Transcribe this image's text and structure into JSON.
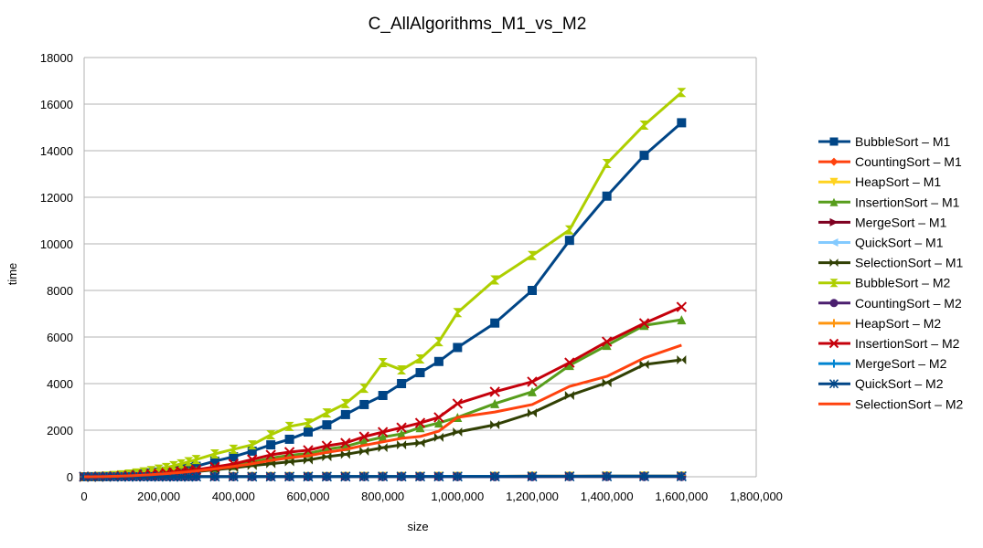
{
  "chart_data": {
    "type": "line",
    "title": "C_AllAlgorithms_M1_vs_M2",
    "xlabel": "size",
    "ylabel": "time",
    "xlim": [
      0,
      1800000
    ],
    "ylim": [
      0,
      18000
    ],
    "x_ticks": [
      "0",
      "200,000",
      "400,000",
      "600,000",
      "800,000",
      "1,000,000",
      "1,200,000",
      "1,400,000",
      "1,600,000",
      "1,800,000"
    ],
    "y_ticks": [
      "0",
      "2000",
      "4000",
      "6000",
      "8000",
      "10000",
      "12000",
      "14000",
      "16000",
      "18000"
    ],
    "grid": "horizontal",
    "legend": "right",
    "x": [
      0,
      20000,
      40000,
      60000,
      80000,
      100000,
      120000,
      140000,
      160000,
      180000,
      200000,
      220000,
      240000,
      260000,
      280000,
      300000,
      350000,
      400000,
      450000,
      500000,
      550000,
      600000,
      650000,
      700000,
      750000,
      800000,
      850000,
      900000,
      950000,
      1000000,
      1100000,
      1200000,
      1300000,
      1400000,
      1500000,
      1600000
    ],
    "series": [
      {
        "name": "BubbleSort – M1",
        "color": "#004586",
        "marker": "square",
        "values": [
          0,
          2,
          8,
          18,
          32,
          50,
          72,
          98,
          128,
          162,
          200,
          242,
          288,
          338,
          392,
          450,
          670,
          860,
          1100,
          1370,
          1610,
          1920,
          2230,
          2670,
          3100,
          3490,
          4000,
          4470,
          4950,
          5550,
          6600,
          8000,
          10150,
          12050,
          13800,
          15200
        ]
      },
      {
        "name": "CountingSort – M1",
        "color": "#ff420e",
        "marker": "diamond",
        "values": [
          0,
          0,
          0,
          1,
          1,
          1,
          1,
          1,
          1,
          2,
          2,
          2,
          2,
          2,
          2,
          3,
          3,
          3,
          3,
          4,
          4,
          4,
          4,
          5,
          5,
          5,
          5,
          6,
          6,
          6,
          7,
          7,
          8,
          8,
          9,
          9
        ]
      },
      {
        "name": "HeapSort – M1",
        "color": "#ffd320",
        "marker": "triangle-down",
        "values": [
          0,
          0,
          1,
          1,
          1,
          2,
          2,
          2,
          3,
          3,
          3,
          4,
          4,
          4,
          5,
          5,
          6,
          7,
          8,
          9,
          10,
          11,
          12,
          13,
          14,
          15,
          16,
          17,
          18,
          19,
          21,
          23,
          25,
          27,
          29,
          31
        ]
      },
      {
        "name": "InsertionSort – M1",
        "color": "#579d1c",
        "marker": "triangle-up",
        "values": [
          0,
          1,
          5,
          11,
          19,
          30,
          43,
          59,
          77,
          97,
          120,
          145,
          173,
          203,
          235,
          270,
          380,
          480,
          620,
          800,
          920,
          1000,
          1180,
          1300,
          1520,
          1700,
          1840,
          2110,
          2310,
          2550,
          3140,
          3650,
          4780,
          5640,
          6500,
          6740
        ]
      },
      {
        "name": "MergeSort – M1",
        "color": "#7e0021",
        "marker": "triangle-right",
        "values": [
          0,
          0,
          1,
          1,
          1,
          2,
          2,
          2,
          3,
          3,
          3,
          4,
          4,
          4,
          5,
          5,
          6,
          7,
          8,
          9,
          10,
          11,
          12,
          13,
          14,
          15,
          16,
          17,
          18,
          19,
          21,
          23,
          25,
          27,
          29,
          31
        ]
      },
      {
        "name": "QuickSort – M1",
        "color": "#83caff",
        "marker": "triangle-left",
        "values": [
          0,
          0,
          0,
          1,
          1,
          1,
          1,
          2,
          2,
          2,
          2,
          3,
          3,
          3,
          3,
          4,
          4,
          5,
          5,
          6,
          6,
          7,
          7,
          8,
          8,
          9,
          9,
          10,
          10,
          11,
          12,
          13,
          14,
          15,
          16,
          17
        ]
      },
      {
        "name": "SelectionSort – M1",
        "color": "#314004",
        "marker": "bowtie",
        "values": [
          0,
          1,
          4,
          9,
          16,
          24,
          35,
          48,
          63,
          79,
          98,
          118,
          141,
          165,
          191,
          220,
          300,
          380,
          480,
          560,
          640,
          720,
          860,
          960,
          1100,
          1250,
          1370,
          1450,
          1690,
          1920,
          2230,
          2740,
          3490,
          4040,
          4820,
          5020
        ]
      },
      {
        "name": "BubbleSort – M2",
        "color": "#aecf00",
        "marker": "hourglass",
        "values": [
          0,
          3,
          13,
          30,
          53,
          82,
          118,
          161,
          210,
          266,
          329,
          398,
          474,
          556,
          645,
          740,
          980,
          1180,
          1370,
          1800,
          2160,
          2310,
          2740,
          3140,
          3800,
          4900,
          4590,
          5060,
          5800,
          7050,
          8450,
          9500,
          10600,
          13450,
          15100,
          16500
        ]
      },
      {
        "name": "CountingSort – M2",
        "color": "#4b1f6f",
        "marker": "circle",
        "values": [
          0,
          0,
          0,
          1,
          1,
          1,
          1,
          1,
          1,
          2,
          2,
          2,
          2,
          2,
          2,
          3,
          3,
          3,
          3,
          4,
          4,
          4,
          4,
          5,
          5,
          5,
          5,
          6,
          6,
          6,
          7,
          7,
          8,
          8,
          9,
          9
        ]
      },
      {
        "name": "HeapSort – M2",
        "color": "#ff950e",
        "marker": "plus",
        "values": [
          0,
          0,
          1,
          1,
          1,
          2,
          2,
          2,
          3,
          3,
          3,
          4,
          4,
          4,
          5,
          5,
          6,
          7,
          8,
          9,
          10,
          11,
          12,
          13,
          14,
          15,
          16,
          17,
          18,
          19,
          21,
          23,
          25,
          27,
          29,
          31
        ]
      },
      {
        "name": "InsertionSort – M2",
        "color": "#c5000b",
        "marker": "x",
        "values": [
          0,
          1,
          5,
          12,
          21,
          33,
          48,
          65,
          85,
          108,
          133,
          161,
          192,
          225,
          261,
          300,
          420,
          550,
          740,
          940,
          1060,
          1140,
          1330,
          1450,
          1720,
          1920,
          2110,
          2310,
          2550,
          3140,
          3650,
          4080,
          4900,
          5800,
          6590,
          7290
        ]
      },
      {
        "name": "MergeSort – M2",
        "color": "#0084d1",
        "marker": "vbar",
        "values": [
          0,
          0,
          1,
          1,
          1,
          2,
          2,
          2,
          3,
          3,
          3,
          4,
          4,
          4,
          5,
          5,
          6,
          7,
          8,
          9,
          10,
          11,
          12,
          13,
          14,
          15,
          16,
          17,
          18,
          19,
          21,
          23,
          25,
          27,
          29,
          31
        ]
      },
      {
        "name": "QuickSort – M2",
        "color": "#004586",
        "marker": "asterisk",
        "values": [
          0,
          0,
          0,
          1,
          1,
          1,
          1,
          2,
          2,
          2,
          2,
          3,
          3,
          3,
          3,
          4,
          4,
          5,
          5,
          6,
          6,
          7,
          7,
          8,
          8,
          9,
          9,
          10,
          10,
          11,
          12,
          13,
          14,
          15,
          16,
          17
        ]
      },
      {
        "name": "SelectionSort – M2",
        "color": "#ff420e",
        "marker": "none",
        "values": [
          0,
          1,
          4,
          10,
          18,
          28,
          40,
          54,
          71,
          90,
          111,
          134,
          160,
          188,
          218,
          250,
          340,
          440,
          560,
          700,
          820,
          900,
          1050,
          1170,
          1350,
          1500,
          1650,
          1730,
          1960,
          2550,
          2780,
          3100,
          3880,
          4310,
          5100,
          5650
        ]
      }
    ]
  }
}
